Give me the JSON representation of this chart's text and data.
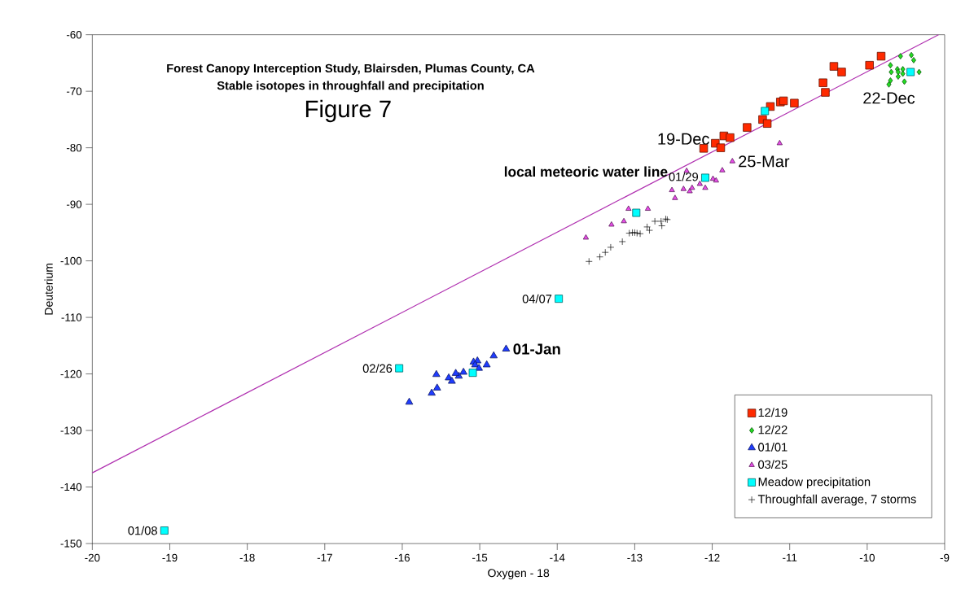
{
  "chart_data": {
    "type": "scatter",
    "title": "Forest  Canopy Interception Study, Blairsden, Plumas County, CA",
    "subtitle": "Stable isotopes in throughfall and precipitation",
    "xlabel": "Oxygen - 18",
    "ylabel": "Deuterium",
    "xlim": [
      -20,
      -9
    ],
    "ylim": [
      -150,
      -60
    ],
    "xticks": [
      -20,
      -19,
      -18,
      -17,
      -16,
      -15,
      -14,
      -13,
      -12,
      -11,
      -10,
      -9
    ],
    "yticks": [
      -150,
      -140,
      -130,
      -120,
      -110,
      -100,
      -90,
      -80,
      -70,
      -60
    ],
    "grid": false,
    "legend": "bottom right",
    "series": [
      {
        "name": "12/19",
        "color": "#ff2a00",
        "marker": "square",
        "x": [
          -9.82,
          -10.43,
          -10.33,
          -9.97,
          -10.57,
          -10.54,
          -11.12,
          -11.08,
          -10.94,
          -11.25,
          -11.29,
          -11.35,
          -11.29,
          -11.55,
          -11.85,
          -11.77,
          -11.96,
          -11.89,
          -12.11
        ],
        "values": [
          -63.8,
          -65.6,
          -66.6,
          -65.4,
          -68.5,
          -70.2,
          -71.9,
          -71.7,
          -72.1,
          -72.7,
          null,
          -75.0,
          -75.7,
          -76.4,
          -77.9,
          -78.2,
          -79.2,
          -80.0,
          -80.1
        ]
      },
      {
        "name": "12/22",
        "color": "#22dd22",
        "marker": "diamond",
        "x": [
          -9.57,
          -9.43,
          -9.4,
          -9.7,
          -9.61,
          -9.69,
          -9.54,
          -9.6,
          -9.54,
          -9.33,
          -9.43,
          -9.6,
          -9.7,
          -9.72,
          -9.52
        ],
        "values": [
          -63.8,
          -63.6,
          -64.5,
          -65.4,
          -66.1,
          -66.6,
          -66.1,
          -66.6,
          -66.9,
          -66.6,
          null,
          -67.4,
          -68.1,
          -68.8,
          -68.3
        ]
      },
      {
        "name": "01/01",
        "color": "#1f3cff",
        "marker": "triangle",
        "x": [
          -14.66,
          -14.82,
          -14.91,
          -15.03,
          -15.08,
          -15.06,
          -15.01,
          -15.13,
          -15.21,
          -15.27,
          -15.31,
          -15.4,
          -15.36,
          -15.56,
          -15.55,
          -15.62,
          -15.91
        ],
        "values": [
          -115.6,
          -116.8,
          -118.4,
          -117.7,
          -117.9,
          -118.4,
          -119.0,
          null,
          -119.7,
          -120.4,
          -119.9,
          -120.7,
          -121.3,
          -120.1,
          -122.5,
          -123.4,
          -125.0
        ]
      },
      {
        "name": "03/25",
        "color": "#e84ce8",
        "marker": "triangle",
        "x": [
          -11.13,
          -11.74,
          -11.87,
          -12.33,
          -12.52,
          -12.48,
          -12.37,
          -12.29,
          -12.26,
          -12.16,
          -12.09,
          -11.99,
          -11.95,
          -13.08,
          -12.83,
          -13.14,
          -13.3,
          -13.63
        ],
        "values": [
          -79.2,
          -82.4,
          -84.0,
          -84.1,
          -87.5,
          -88.9,
          -87.3,
          -87.7,
          -87.1,
          -86.4,
          -87.1,
          -85.5,
          -85.8,
          -90.8,
          -90.8,
          -93.0,
          -93.6,
          -95.9
        ]
      },
      {
        "name": "Meadow precipitation",
        "color": "#00ffff",
        "marker": "square",
        "x": [
          -11.32,
          -9.44,
          -12.09,
          -12.98,
          -13.98,
          -16.04,
          -15.09,
          -19.07
        ],
        "values": [
          -73.5,
          -66.6,
          -85.3,
          -91.5,
          -106.7,
          -119.0,
          -119.8,
          -147.7
        ]
      },
      {
        "name": "Throughfall average, 7 storms",
        "color": "#000000",
        "marker": "cross",
        "x": [
          -13.59,
          -13.45,
          -13.38,
          -13.31,
          -13.16,
          -13.07,
          -13.03,
          -13.0,
          -12.97,
          -12.93,
          -12.84,
          -12.81,
          -12.74,
          -12.66,
          -12.65,
          -12.6,
          -12.58
        ],
        "values": [
          -100.1,
          -99.3,
          -98.5,
          -97.6,
          -96.6,
          -95.1,
          -95.0,
          -95.0,
          -95.1,
          -95.2,
          -94.0,
          -94.6,
          -93.0,
          -93.0,
          -93.8,
          -92.6,
          -92.7
        ]
      },
      {
        "type": "line",
        "color": "#b030b0",
        "marker": "none",
        "x": [
          -20,
          -9.08
        ],
        "values": [
          -137.5,
          -60
        ]
      }
    ],
    "annotations": [
      "Figure  7",
      {
        "text": "local meteoric water line",
        "x": -12.5,
        "y": -84.2
      },
      {
        "text": "19-Dec",
        "x": -11.96,
        "y": -79.2
      },
      {
        "text": "22-Dec",
        "x": -9.72,
        "y": -68.8
      },
      {
        "text": "25-Mar",
        "x": -11.74,
        "y": -82.4
      },
      {
        "text": "01-Jan",
        "x": -14.66,
        "y": -115.6
      },
      {
        "text": "01/29",
        "x": -12.09,
        "y": -85.3
      },
      {
        "text": "04/07",
        "x": -13.98,
        "y": -106.7
      },
      {
        "text": "02/26",
        "x": -16.04,
        "y": -119.0
      },
      {
        "text": "01/08",
        "x": -19.07,
        "y": -147.7
      }
    ]
  }
}
